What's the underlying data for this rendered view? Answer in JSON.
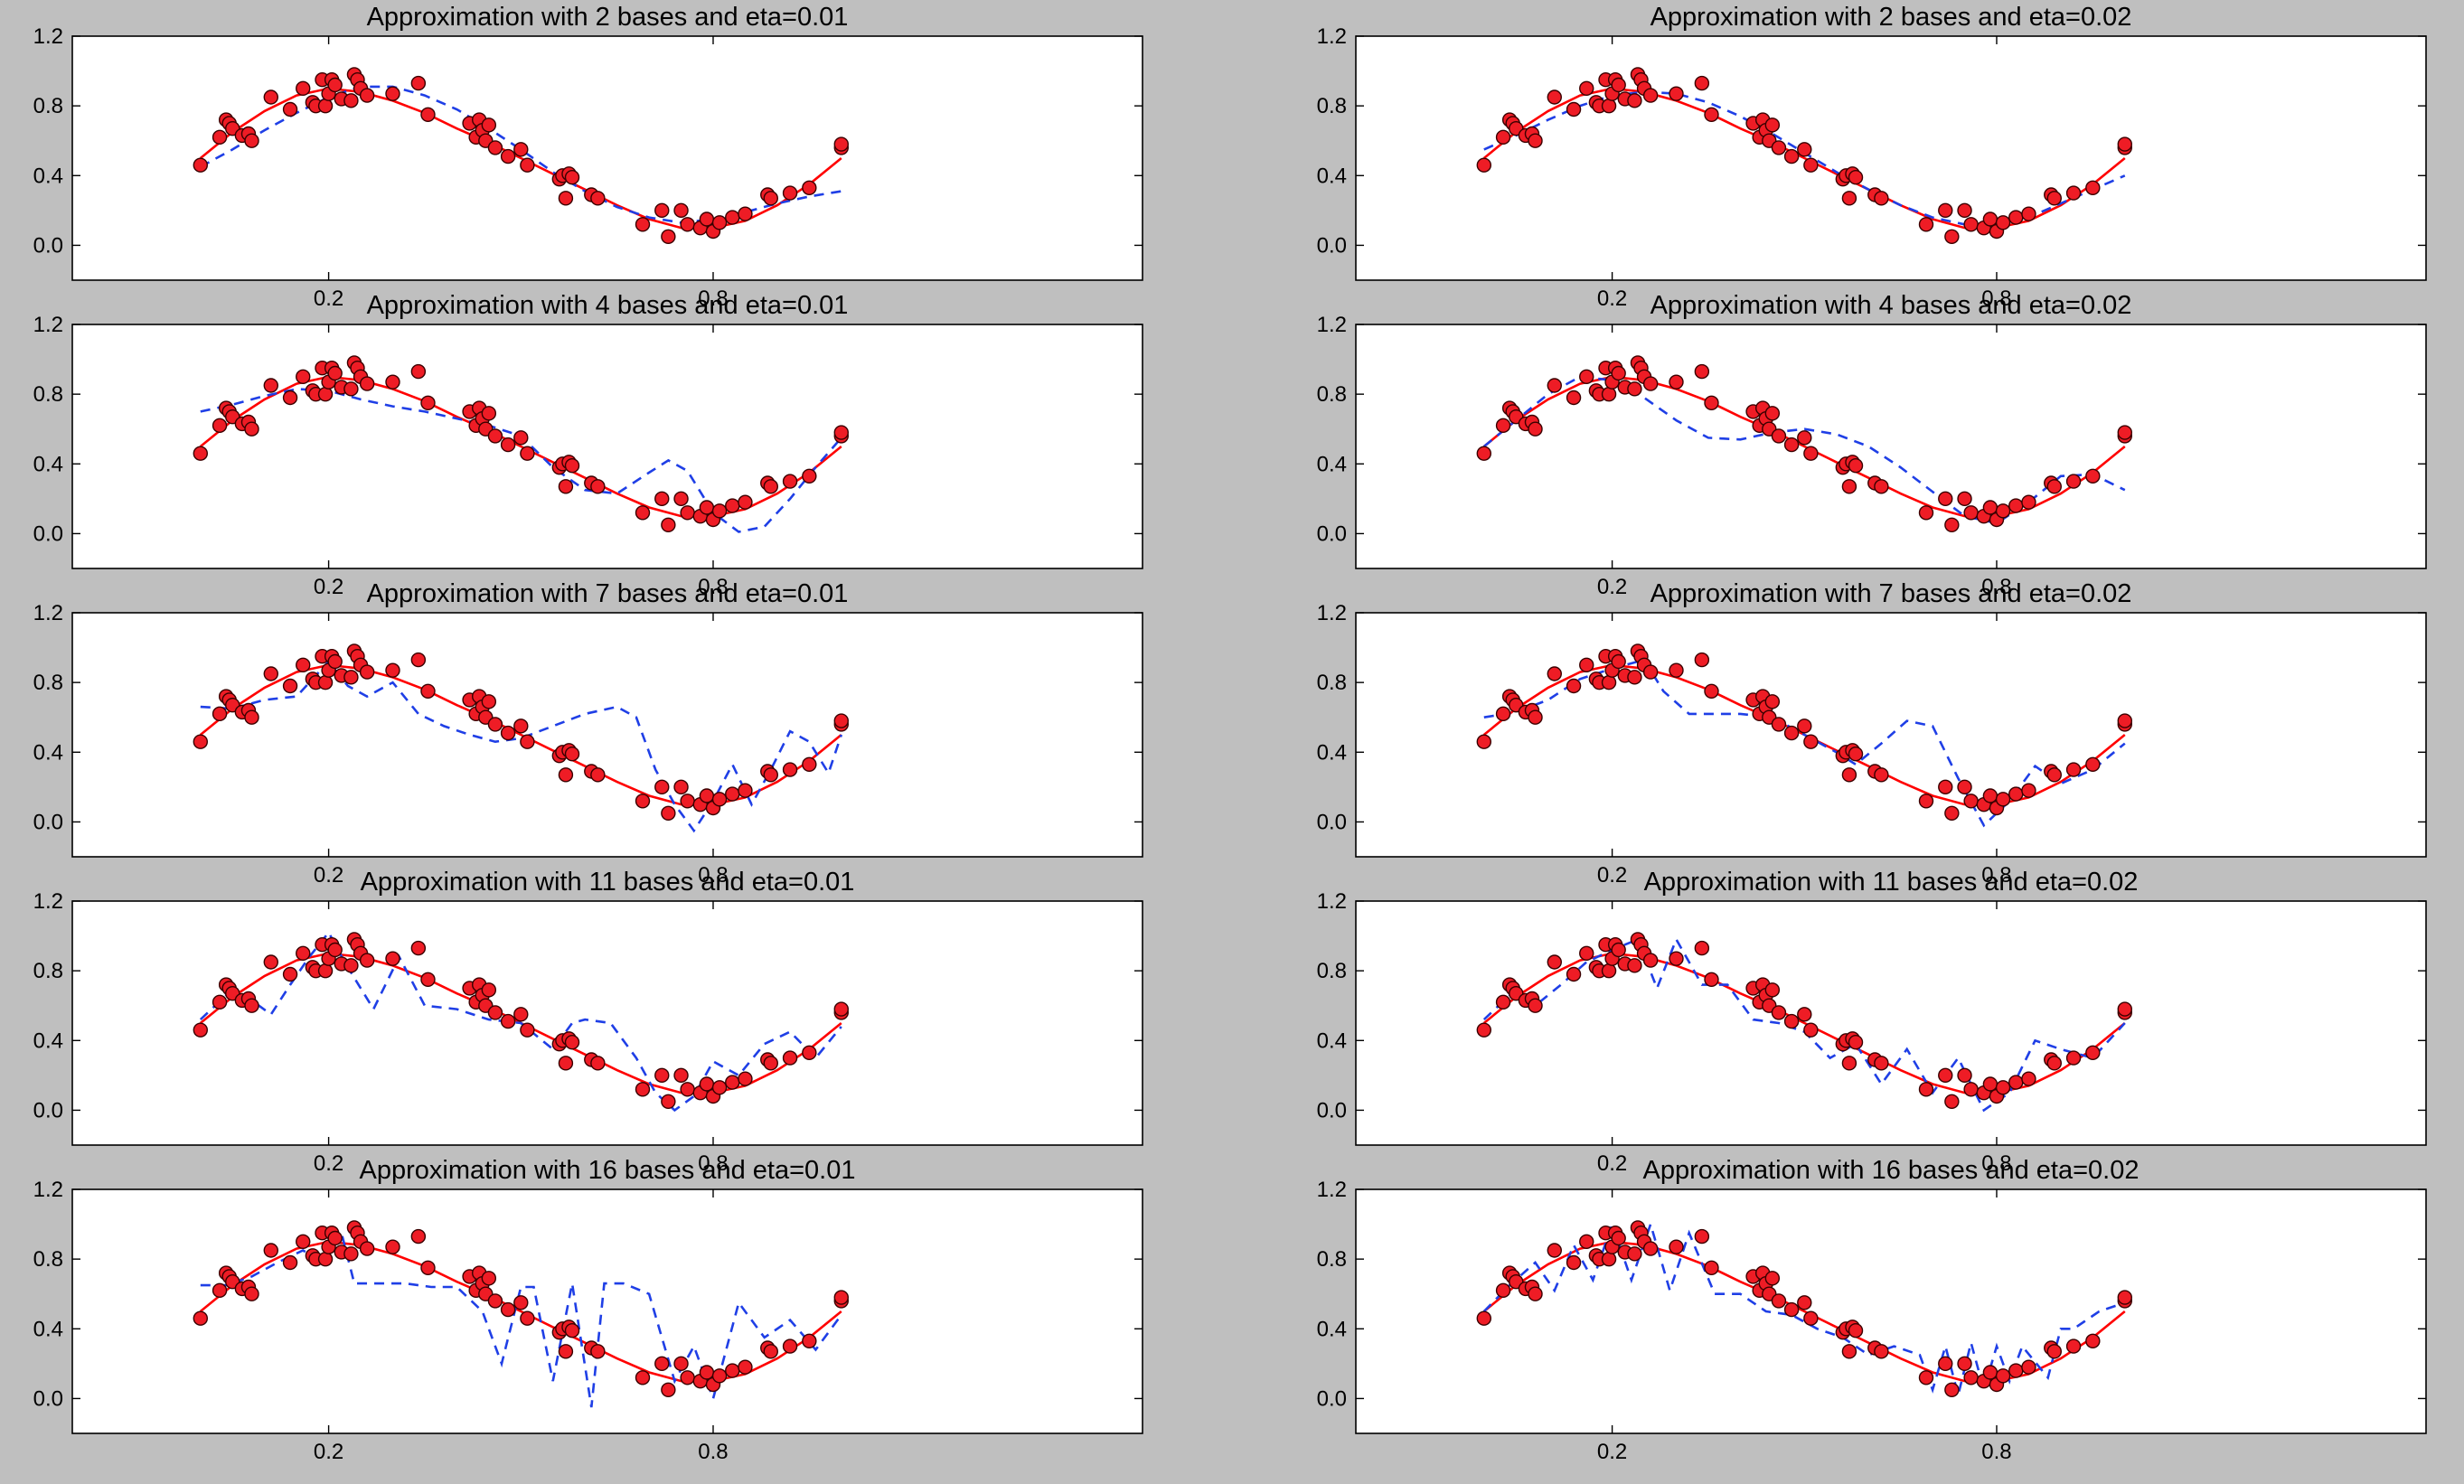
{
  "figure": {
    "background": "#bfbfbf"
  },
  "style": {
    "truth_color": "#ff0000",
    "approx_color": "#1f3fe6",
    "point_fill": "#ee1c25",
    "point_edge": "#3a0000"
  },
  "samples": {
    "x": [
      0.0,
      0.03,
      0.04,
      0.045,
      0.05,
      0.065,
      0.075,
      0.08,
      0.11,
      0.14,
      0.16,
      0.175,
      0.18,
      0.19,
      0.195,
      0.2,
      0.205,
      0.21,
      0.22,
      0.235,
      0.24,
      0.245,
      0.25,
      0.26,
      0.3,
      0.34,
      0.355,
      0.42,
      0.43,
      0.435,
      0.44,
      0.445,
      0.45,
      0.46,
      0.48,
      0.5,
      0.51,
      0.56,
      0.565,
      0.57,
      0.575,
      0.58,
      0.61,
      0.62,
      0.69,
      0.72,
      0.73,
      0.75,
      0.76,
      0.78,
      0.79,
      0.8,
      0.81,
      0.83,
      0.85,
      0.885,
      0.89,
      0.92,
      0.95,
      1.0,
      1.0
    ],
    "y": [
      0.46,
      0.62,
      0.72,
      0.7,
      0.67,
      0.63,
      0.64,
      0.6,
      0.85,
      0.78,
      0.9,
      0.82,
      0.8,
      0.95,
      0.8,
      0.87,
      0.95,
      0.92,
      0.84,
      0.83,
      0.98,
      0.95,
      0.9,
      0.86,
      0.87,
      0.93,
      0.75,
      0.7,
      0.62,
      0.72,
      0.66,
      0.6,
      0.69,
      0.56,
      0.51,
      0.55,
      0.46,
      0.38,
      0.4,
      0.27,
      0.41,
      0.39,
      0.29,
      0.27,
      0.12,
      0.2,
      0.05,
      0.2,
      0.12,
      0.1,
      0.15,
      0.08,
      0.13,
      0.16,
      0.18,
      0.29,
      0.27,
      0.3,
      0.33,
      0.56,
      0.58
    ]
  },
  "truth": {
    "x": [
      0.0,
      0.05,
      0.1,
      0.15,
      0.2,
      0.25,
      0.3,
      0.35,
      0.4,
      0.45,
      0.5,
      0.55,
      0.6,
      0.65,
      0.7,
      0.75,
      0.8,
      0.85,
      0.9,
      0.95,
      1.0
    ],
    "y": [
      0.5,
      0.65,
      0.77,
      0.86,
      0.9,
      0.88,
      0.83,
      0.76,
      0.67,
      0.59,
      0.5,
      0.41,
      0.32,
      0.23,
      0.15,
      0.1,
      0.1,
      0.14,
      0.23,
      0.35,
      0.5
    ]
  },
  "chart_data": [
    {
      "type": "line",
      "title": "Approximation with 2 bases and eta=0.01",
      "xlabel": "",
      "ylabel": "",
      "xticks": [
        0.2,
        0.8
      ],
      "yticks": [
        0.0,
        0.4,
        0.8,
        1.2
      ],
      "ylim": [
        -0.2,
        1.2
      ],
      "approx": {
        "x": [
          0.0,
          0.05,
          0.1,
          0.15,
          0.2,
          0.25,
          0.3,
          0.35,
          0.4,
          0.45,
          0.5,
          0.55,
          0.6,
          0.65,
          0.7,
          0.75,
          0.8,
          0.85,
          0.9,
          0.95,
          1.0
        ],
        "y": [
          0.45,
          0.55,
          0.66,
          0.76,
          0.85,
          0.91,
          0.91,
          0.86,
          0.78,
          0.67,
          0.55,
          0.42,
          0.31,
          0.22,
          0.16,
          0.13,
          0.15,
          0.19,
          0.24,
          0.28,
          0.31
        ]
      }
    },
    {
      "type": "line",
      "title": "Approximation with 2 bases and eta=0.02",
      "xlabel": "",
      "ylabel": "",
      "xticks": [
        0.2,
        0.8
      ],
      "yticks": [
        0.0,
        0.4,
        0.8,
        1.2
      ],
      "ylim": [
        -0.2,
        1.2
      ],
      "approx": {
        "x": [
          0.0,
          0.05,
          0.1,
          0.15,
          0.2,
          0.25,
          0.3,
          0.35,
          0.4,
          0.45,
          0.5,
          0.55,
          0.6,
          0.65,
          0.7,
          0.75,
          0.8,
          0.85,
          0.9,
          0.95,
          1.0
        ],
        "y": [
          0.55,
          0.63,
          0.72,
          0.8,
          0.86,
          0.88,
          0.87,
          0.82,
          0.74,
          0.64,
          0.53,
          0.42,
          0.32,
          0.23,
          0.16,
          0.12,
          0.12,
          0.16,
          0.24,
          0.32,
          0.4
        ]
      }
    },
    {
      "type": "line",
      "title": "Approximation with 4 bases and eta=0.01",
      "xlabel": "",
      "ylabel": "",
      "xticks": [
        0.2,
        0.8
      ],
      "yticks": [
        0.0,
        0.4,
        0.8,
        1.2
      ],
      "ylim": [
        -0.2,
        1.2
      ],
      "approx": {
        "x": [
          0.0,
          0.05,
          0.1,
          0.15,
          0.2,
          0.25,
          0.3,
          0.35,
          0.4,
          0.45,
          0.5,
          0.55,
          0.6,
          0.65,
          0.7,
          0.73,
          0.76,
          0.8,
          0.84,
          0.88,
          0.92,
          0.96,
          1.0
        ],
        "y": [
          0.7,
          0.74,
          0.79,
          0.83,
          0.82,
          0.77,
          0.73,
          0.7,
          0.66,
          0.62,
          0.56,
          0.38,
          0.25,
          0.23,
          0.35,
          0.42,
          0.36,
          0.12,
          0.01,
          0.04,
          0.2,
          0.38,
          0.55
        ]
      }
    },
    {
      "type": "line",
      "title": "Approximation with 4 bases and eta=0.02",
      "xlabel": "",
      "ylabel": "",
      "xticks": [
        0.2,
        0.8
      ],
      "yticks": [
        0.0,
        0.4,
        0.8,
        1.2
      ],
      "ylim": [
        -0.2,
        1.2
      ],
      "approx": {
        "x": [
          0.0,
          0.05,
          0.1,
          0.15,
          0.2,
          0.25,
          0.3,
          0.35,
          0.4,
          0.45,
          0.5,
          0.55,
          0.6,
          0.65,
          0.7,
          0.75,
          0.8,
          0.85,
          0.9,
          0.95,
          1.0
        ],
        "y": [
          0.5,
          0.65,
          0.8,
          0.9,
          0.88,
          0.78,
          0.65,
          0.55,
          0.54,
          0.58,
          0.6,
          0.57,
          0.5,
          0.38,
          0.24,
          0.1,
          0.06,
          0.18,
          0.33,
          0.34,
          0.25
        ]
      }
    },
    {
      "type": "line",
      "title": "Approximation with 7 bases and eta=0.01",
      "xlabel": "",
      "ylabel": "",
      "xticks": [
        0.2,
        0.8
      ],
      "yticks": [
        0.0,
        0.4,
        0.8,
        1.2
      ],
      "ylim": [
        -0.2,
        1.2
      ],
      "approx": {
        "x": [
          0.0,
          0.05,
          0.1,
          0.15,
          0.2,
          0.23,
          0.26,
          0.3,
          0.34,
          0.38,
          0.42,
          0.46,
          0.5,
          0.55,
          0.6,
          0.65,
          0.68,
          0.71,
          0.74,
          0.77,
          0.8,
          0.83,
          0.86,
          0.89,
          0.92,
          0.95,
          0.98,
          1.0
        ],
        "y": [
          0.66,
          0.65,
          0.7,
          0.72,
          0.92,
          0.78,
          0.72,
          0.8,
          0.62,
          0.55,
          0.5,
          0.46,
          0.48,
          0.55,
          0.62,
          0.66,
          0.6,
          0.3,
          0.1,
          -0.05,
          0.12,
          0.33,
          0.1,
          0.3,
          0.52,
          0.46,
          0.28,
          0.5
        ]
      }
    },
    {
      "type": "line",
      "title": "Approximation with 7 bases and eta=0.02",
      "xlabel": "",
      "ylabel": "",
      "xticks": [
        0.2,
        0.8
      ],
      "yticks": [
        0.0,
        0.4,
        0.8,
        1.2
      ],
      "ylim": [
        -0.2,
        1.2
      ],
      "approx": {
        "x": [
          0.0,
          0.05,
          0.1,
          0.15,
          0.2,
          0.25,
          0.28,
          0.32,
          0.36,
          0.4,
          0.45,
          0.5,
          0.55,
          0.58,
          0.62,
          0.66,
          0.7,
          0.74,
          0.78,
          0.82,
          0.86,
          0.9,
          0.95,
          1.0
        ],
        "y": [
          0.6,
          0.63,
          0.7,
          0.82,
          0.88,
          0.93,
          0.75,
          0.62,
          0.62,
          0.62,
          0.6,
          0.5,
          0.4,
          0.33,
          0.45,
          0.58,
          0.55,
          0.25,
          -0.02,
          0.12,
          0.32,
          0.22,
          0.3,
          0.45
        ]
      }
    },
    {
      "type": "line",
      "title": "Approximation with 11 bases and eta=0.01",
      "xlabel": "",
      "ylabel": "",
      "xticks": [
        0.2,
        0.8
      ],
      "yticks": [
        0.0,
        0.4,
        0.8,
        1.2
      ],
      "ylim": [
        -0.2,
        1.2
      ],
      "approx": {
        "x": [
          0.0,
          0.04,
          0.08,
          0.11,
          0.14,
          0.17,
          0.2,
          0.225,
          0.27,
          0.31,
          0.35,
          0.4,
          0.45,
          0.5,
          0.55,
          0.58,
          0.6,
          0.64,
          0.68,
          0.71,
          0.74,
          0.77,
          0.8,
          0.84,
          0.88,
          0.92,
          0.96,
          1.0
        ],
        "y": [
          0.52,
          0.66,
          0.63,
          0.55,
          0.72,
          0.88,
          1.02,
          0.85,
          0.58,
          0.88,
          0.6,
          0.58,
          0.52,
          0.5,
          0.35,
          0.5,
          0.52,
          0.5,
          0.3,
          0.1,
          0.0,
          0.08,
          0.28,
          0.2,
          0.38,
          0.45,
          0.3,
          0.48
        ]
      }
    },
    {
      "type": "line",
      "title": "Approximation with 11 bases and eta=0.02",
      "xlabel": "",
      "ylabel": "",
      "xticks": [
        0.2,
        0.8
      ],
      "yticks": [
        0.0,
        0.4,
        0.8,
        1.2
      ],
      "ylim": [
        -0.2,
        1.2
      ],
      "approx": {
        "x": [
          0.0,
          0.04,
          0.08,
          0.12,
          0.16,
          0.2,
          0.24,
          0.27,
          0.3,
          0.34,
          0.38,
          0.42,
          0.46,
          0.5,
          0.54,
          0.58,
          0.62,
          0.66,
          0.7,
          0.74,
          0.78,
          0.82,
          0.86,
          0.9,
          0.95,
          1.0
        ],
        "y": [
          0.52,
          0.66,
          0.6,
          0.72,
          0.85,
          0.92,
          0.98,
          0.7,
          0.98,
          0.72,
          0.72,
          0.52,
          0.5,
          0.45,
          0.3,
          0.38,
          0.15,
          0.35,
          0.1,
          0.3,
          0.0,
          0.1,
          0.4,
          0.35,
          0.3,
          0.5
        ]
      }
    },
    {
      "type": "line",
      "title": "Approximation with 16 bases and eta=0.01",
      "xlabel": "",
      "ylabel": "",
      "xticks": [
        0.2,
        0.8
      ],
      "yticks": [
        0.0,
        0.4,
        0.8,
        1.2
      ],
      "ylim": [
        -0.2,
        1.2
      ],
      "approx": {
        "x": [
          0.0,
          0.04,
          0.08,
          0.12,
          0.16,
          0.19,
          0.22,
          0.24,
          0.28,
          0.32,
          0.36,
          0.4,
          0.44,
          0.47,
          0.5,
          0.52,
          0.55,
          0.58,
          0.61,
          0.63,
          0.66,
          0.7,
          0.74,
          0.77,
          0.8,
          0.84,
          0.88,
          0.92,
          0.96,
          1.0
        ],
        "y": [
          0.65,
          0.65,
          0.7,
          0.78,
          0.85,
          0.78,
          0.95,
          0.66,
          0.66,
          0.66,
          0.64,
          0.64,
          0.5,
          0.2,
          0.64,
          0.64,
          0.1,
          0.66,
          -0.05,
          0.66,
          0.66,
          0.6,
          0.1,
          0.3,
          0.0,
          0.55,
          0.35,
          0.45,
          0.28,
          0.48
        ]
      }
    },
    {
      "type": "line",
      "title": "Approximation with 16 bases and eta=0.02",
      "xlabel": "",
      "ylabel": "",
      "xticks": [
        0.2,
        0.8
      ],
      "yticks": [
        0.0,
        0.4,
        0.8,
        1.2
      ],
      "ylim": [
        -0.2,
        1.2
      ],
      "approx": {
        "x": [
          0.0,
          0.04,
          0.08,
          0.11,
          0.14,
          0.17,
          0.2,
          0.23,
          0.26,
          0.29,
          0.32,
          0.36,
          0.4,
          0.44,
          0.48,
          0.52,
          0.56,
          0.6,
          0.64,
          0.68,
          0.7,
          0.72,
          0.74,
          0.76,
          0.78,
          0.8,
          0.82,
          0.84,
          0.88,
          0.9,
          0.92,
          0.96,
          1.0
        ],
        "y": [
          0.5,
          0.65,
          0.78,
          0.62,
          0.88,
          0.68,
          1.0,
          0.68,
          1.0,
          0.62,
          0.95,
          0.6,
          0.6,
          0.5,
          0.48,
          0.4,
          0.35,
          0.25,
          0.3,
          0.25,
          0.05,
          0.3,
          0.02,
          0.32,
          0.05,
          0.3,
          0.1,
          0.3,
          0.12,
          0.4,
          0.4,
          0.5,
          0.55
        ]
      }
    }
  ]
}
